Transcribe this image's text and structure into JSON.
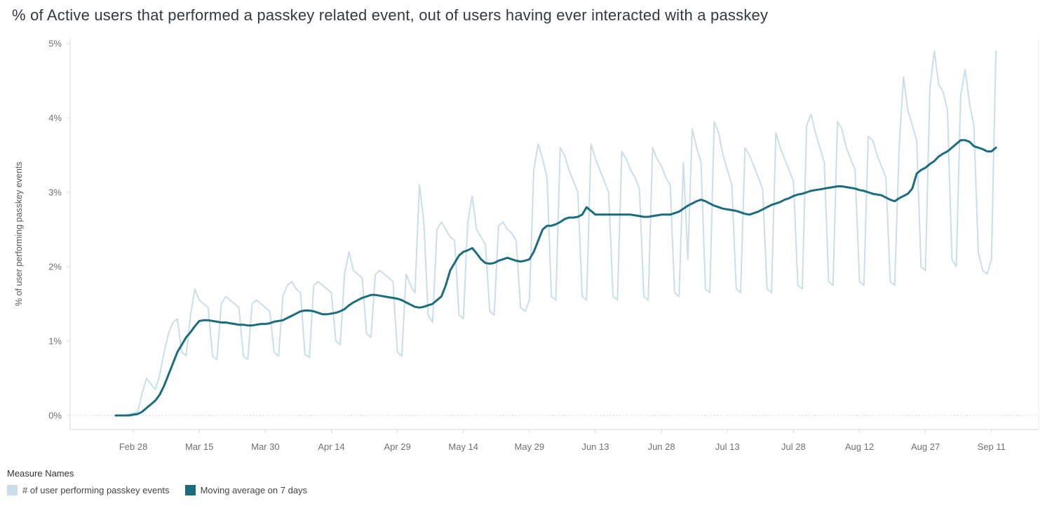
{
  "legend": {
    "title": "Measure Names"
  },
  "colors": {
    "daily_line": "#c9dee9",
    "ma_line": "#1b6d7e",
    "axis": "#d7d7d7",
    "zero_gridline": "#c2c2c2",
    "tick_text": "#707070",
    "title_text": "#333940"
  },
  "chart_data": {
    "type": "line",
    "title": "% of Active users that performed a passkey related event, out of users having ever interacted with a passkey",
    "ylabel": "% of user performing passkey events",
    "ylim": [
      0,
      5
    ],
    "y_tick_values": [
      0,
      1,
      2,
      3,
      4,
      5
    ],
    "y_tick_labels": [
      "0%",
      "1%",
      "2%",
      "3%",
      "4%",
      "5%"
    ],
    "grid": "dotted zero line only",
    "legend_position": "bottom-left",
    "x_frequency": "daily",
    "x_start_date": "Feb 24",
    "x_end_date": "Sep 12",
    "x_tick_labels": [
      "Feb 28",
      "Mar 15",
      "Mar 30",
      "Apr 14",
      "Apr 29",
      "May 14",
      "May 29",
      "Jun 13",
      "Jun 28",
      "Jul 13",
      "Jul 28",
      "Aug 12",
      "Aug 27",
      "Sep 11"
    ],
    "x_tick_indices": [
      4,
      19,
      34,
      49,
      64,
      79,
      94,
      109,
      124,
      139,
      154,
      169,
      184,
      199
    ],
    "series": [
      {
        "name": "# of user performing passkey events",
        "color": "#c9dee9",
        "width": 2,
        "values": [
          0,
          0,
          0,
          0.02,
          0.03,
          0.05,
          0.3,
          0.5,
          0.42,
          0.35,
          0.55,
          0.85,
          1.1,
          1.25,
          1.3,
          0.85,
          0.8,
          1.35,
          1.7,
          1.55,
          1.5,
          1.45,
          0.8,
          0.75,
          1.5,
          1.6,
          1.55,
          1.5,
          1.45,
          0.8,
          0.75,
          1.5,
          1.55,
          1.5,
          1.45,
          1.4,
          0.85,
          0.8,
          1.6,
          1.75,
          1.8,
          1.7,
          1.65,
          0.82,
          0.78,
          1.75,
          1.8,
          1.75,
          1.7,
          1.65,
          1.0,
          0.95,
          1.9,
          2.2,
          1.95,
          1.9,
          1.85,
          1.1,
          1.05,
          1.9,
          1.95,
          1.9,
          1.85,
          1.8,
          0.85,
          0.8,
          1.9,
          1.75,
          1.65,
          3.1,
          2.6,
          1.35,
          1.25,
          2.5,
          2.6,
          2.5,
          2.4,
          2.35,
          1.35,
          1.3,
          2.6,
          2.95,
          2.5,
          2.4,
          2.3,
          1.4,
          1.35,
          2.55,
          2.6,
          2.5,
          2.45,
          2.35,
          1.45,
          1.4,
          1.55,
          3.3,
          3.65,
          3.45,
          3.2,
          1.6,
          1.55,
          3.6,
          3.5,
          3.3,
          3.15,
          3.0,
          1.6,
          1.55,
          3.65,
          3.45,
          3.3,
          3.15,
          3.0,
          1.6,
          1.55,
          3.55,
          3.45,
          3.3,
          3.2,
          3.05,
          1.6,
          1.55,
          3.6,
          3.45,
          3.35,
          3.2,
          3.1,
          1.65,
          1.6,
          3.4,
          2.1,
          3.85,
          3.6,
          3.4,
          1.7,
          1.65,
          3.95,
          3.8,
          3.5,
          3.3,
          3.1,
          1.7,
          1.65,
          3.6,
          3.5,
          3.35,
          3.2,
          3.05,
          1.7,
          1.65,
          3.8,
          3.6,
          3.45,
          3.3,
          3.15,
          1.75,
          1.7,
          3.9,
          4.05,
          3.8,
          3.6,
          3.4,
          1.8,
          1.75,
          3.95,
          3.85,
          3.6,
          3.45,
          3.3,
          1.8,
          1.75,
          3.75,
          3.7,
          3.5,
          3.35,
          3.2,
          1.8,
          1.75,
          3.6,
          4.55,
          4.1,
          3.9,
          3.7,
          2.0,
          1.95,
          4.4,
          4.9,
          4.45,
          4.35,
          4.1,
          2.1,
          2.0,
          4.3,
          4.65,
          4.2,
          3.9,
          2.2,
          1.95,
          1.9,
          2.1,
          4.9
        ]
      },
      {
        "name": "Moving average on 7 days",
        "color": "#1b6d7e",
        "width": 3,
        "values": [
          0,
          0,
          0,
          0,
          0.01,
          0.02,
          0.05,
          0.1,
          0.15,
          0.2,
          0.28,
          0.4,
          0.55,
          0.7,
          0.85,
          0.95,
          1.05,
          1.12,
          1.2,
          1.27,
          1.28,
          1.28,
          1.27,
          1.26,
          1.25,
          1.25,
          1.24,
          1.23,
          1.22,
          1.22,
          1.21,
          1.21,
          1.22,
          1.23,
          1.23,
          1.24,
          1.26,
          1.27,
          1.28,
          1.31,
          1.34,
          1.37,
          1.4,
          1.41,
          1.41,
          1.4,
          1.38,
          1.36,
          1.36,
          1.37,
          1.38,
          1.4,
          1.43,
          1.48,
          1.52,
          1.55,
          1.58,
          1.6,
          1.62,
          1.62,
          1.61,
          1.6,
          1.59,
          1.58,
          1.57,
          1.55,
          1.52,
          1.49,
          1.46,
          1.45,
          1.46,
          1.48,
          1.5,
          1.55,
          1.6,
          1.75,
          1.95,
          2.05,
          2.15,
          2.2,
          2.22,
          2.25,
          2.18,
          2.1,
          2.05,
          2.04,
          2.05,
          2.08,
          2.1,
          2.12,
          2.1,
          2.08,
          2.07,
          2.08,
          2.1,
          2.2,
          2.35,
          2.5,
          2.55,
          2.55,
          2.57,
          2.6,
          2.64,
          2.66,
          2.66,
          2.67,
          2.7,
          2.8,
          2.75,
          2.7,
          2.7,
          2.7,
          2.7,
          2.7,
          2.7,
          2.7,
          2.7,
          2.7,
          2.69,
          2.68,
          2.67,
          2.67,
          2.68,
          2.69,
          2.7,
          2.7,
          2.7,
          2.72,
          2.74,
          2.78,
          2.82,
          2.85,
          2.88,
          2.9,
          2.88,
          2.85,
          2.82,
          2.8,
          2.78,
          2.77,
          2.76,
          2.75,
          2.73,
          2.71,
          2.7,
          2.72,
          2.74,
          2.77,
          2.8,
          2.83,
          2.85,
          2.87,
          2.9,
          2.92,
          2.95,
          2.97,
          2.98,
          3.0,
          3.02,
          3.03,
          3.04,
          3.05,
          3.06,
          3.07,
          3.08,
          3.08,
          3.07,
          3.06,
          3.05,
          3.03,
          3.02,
          3.0,
          2.98,
          2.97,
          2.96,
          2.93,
          2.9,
          2.88,
          2.92,
          2.95,
          2.98,
          3.05,
          3.25,
          3.3,
          3.33,
          3.38,
          3.42,
          3.48,
          3.52,
          3.55,
          3.6,
          3.65,
          3.7,
          3.7,
          3.68,
          3.62,
          3.6,
          3.58,
          3.55,
          3.55,
          3.6
        ]
      }
    ]
  }
}
